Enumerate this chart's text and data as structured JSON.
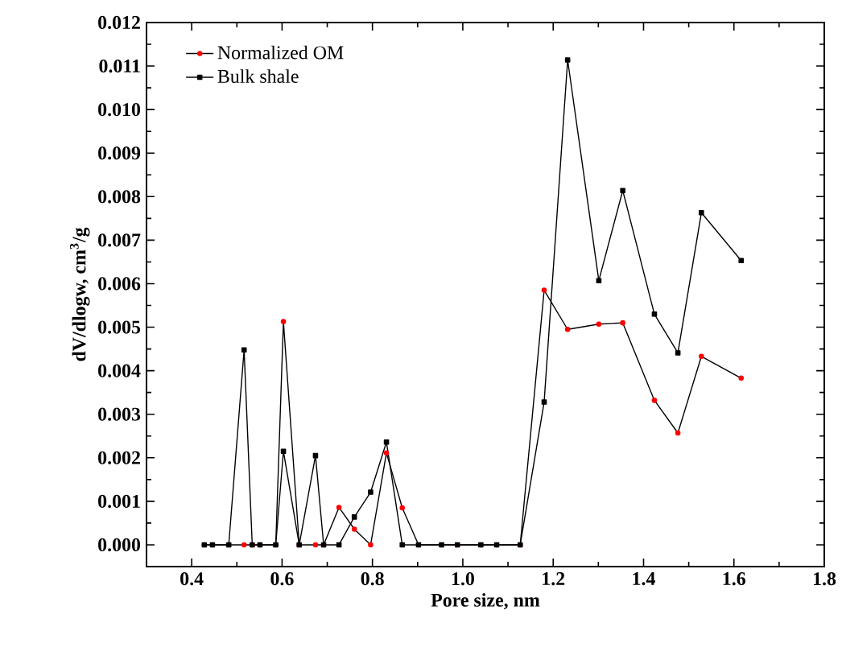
{
  "chart_data": {
    "type": "line",
    "xlabel": "Pore size, nm",
    "ylabel": "dV/dlogw, cm$^{3}$/g",
    "xlim": [
      0.3,
      1.8
    ],
    "xticks": [
      {
        "value": 0.4,
        "label": "0.4"
      },
      {
        "value": 0.6,
        "label": "0.6"
      },
      {
        "value": 0.8,
        "label": "0.8"
      },
      {
        "value": 1.0,
        "label": "1.0"
      },
      {
        "value": 1.2,
        "label": "1.2"
      },
      {
        "value": 1.4,
        "label": "1.4"
      },
      {
        "value": 1.6,
        "label": "1.6"
      },
      {
        "value": 1.8,
        "label": "1.8"
      }
    ],
    "ylim": [
      -0.0005,
      0.012
    ],
    "yticks": [
      {
        "value": 0,
        "label": "0.000"
      },
      {
        "value": 0.001,
        "label": "0.001"
      },
      {
        "value": 0.002,
        "label": "0.002"
      },
      {
        "value": 0.003,
        "label": "0.003"
      },
      {
        "value": 0.004,
        "label": "0.004"
      },
      {
        "value": 0.005,
        "label": "0.005"
      },
      {
        "value": 0.006,
        "label": "0.006"
      },
      {
        "value": 0.007,
        "label": "0.007"
      },
      {
        "value": 0.008,
        "label": "0.008"
      },
      {
        "value": 0.009,
        "label": "0.009"
      },
      {
        "value": 0.01,
        "label": "0.010"
      },
      {
        "value": 0.011,
        "label": "0.011"
      },
      {
        "value": 0.012,
        "label": "0.012"
      }
    ],
    "legend": "top left",
    "grid": false,
    "x": [
      0.428,
      0.446,
      0.482,
      0.516,
      0.534,
      0.551,
      0.586,
      0.603,
      0.638,
      0.674,
      0.692,
      0.726,
      0.76,
      0.796,
      0.831,
      0.866,
      0.902,
      0.953,
      0.988,
      1.04,
      1.075,
      1.127,
      1.18,
      1.232,
      1.301,
      1.354,
      1.424,
      1.476,
      1.528,
      1.616
    ],
    "series": [
      {
        "name": "Normalized OM",
        "color": "#ff0000",
        "marker": "circle",
        "values": [
          0,
          0,
          0,
          0,
          0,
          0,
          0,
          0.00513,
          0,
          0,
          0,
          0.00086,
          0.00036,
          0,
          0.00211,
          0.00085,
          0,
          0,
          0,
          0,
          0,
          0,
          0.00585,
          0.00495,
          0.00507,
          0.0051,
          0.00332,
          0.00257,
          0.00433,
          0.00383
        ]
      },
      {
        "name": "Bulk shale",
        "color": "#000000",
        "marker": "square",
        "values": [
          0,
          0,
          0,
          0.00448,
          0,
          0,
          0,
          0.00215,
          0,
          0.00205,
          0,
          0,
          0.00064,
          0.00121,
          0.00236,
          0,
          0,
          0,
          0,
          0,
          0,
          0,
          0.00328,
          0.01114,
          0.00607,
          0.00814,
          0.0053,
          0.00441,
          0.00763,
          0.00653
        ]
      }
    ]
  }
}
